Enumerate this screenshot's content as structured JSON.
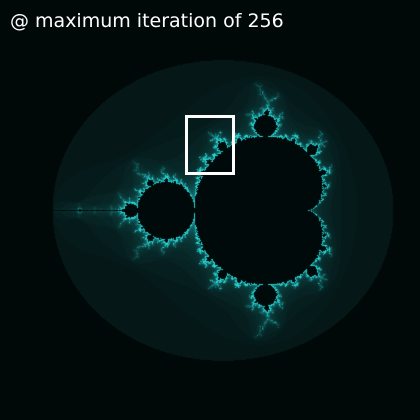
{
  "caption": {
    "text": "@ maximum iteration of 256"
  },
  "fractal": {
    "name": "Mandelbrot set",
    "max_iteration": 256,
    "background_color": "#000000",
    "outer_color": "#062424",
    "edge_color": "#1fd6d6",
    "selection_color": "#ffffff"
  }
}
